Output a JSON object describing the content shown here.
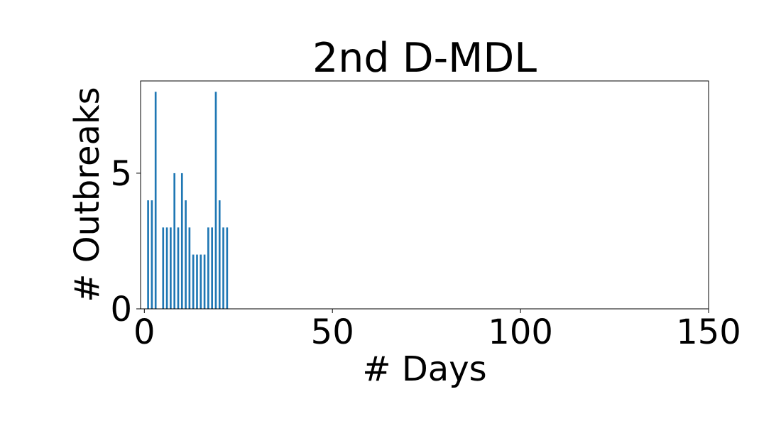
{
  "chart_data": {
    "type": "bar",
    "title": "2nd D-MDL",
    "xlabel": "# Days",
    "ylabel": "# Outbreaks",
    "xlim": [
      -1,
      150
    ],
    "ylim": [
      0,
      8.4
    ],
    "xticks": [
      0,
      50,
      100,
      150
    ],
    "yticks": [
      0,
      5
    ],
    "bar_width": 0.5,
    "bar_color": "#1f77b4",
    "grid": false,
    "legend": "none",
    "x": [
      1,
      2,
      3,
      4,
      5,
      6,
      7,
      8,
      9,
      10,
      11,
      12,
      13,
      14,
      15,
      16,
      17,
      18,
      19,
      20,
      21,
      22
    ],
    "values": [
      4,
      4,
      8,
      0,
      3,
      3,
      3,
      5,
      3,
      5,
      4,
      3,
      2,
      2,
      2,
      2,
      3,
      3,
      8,
      4,
      3,
      3
    ]
  }
}
